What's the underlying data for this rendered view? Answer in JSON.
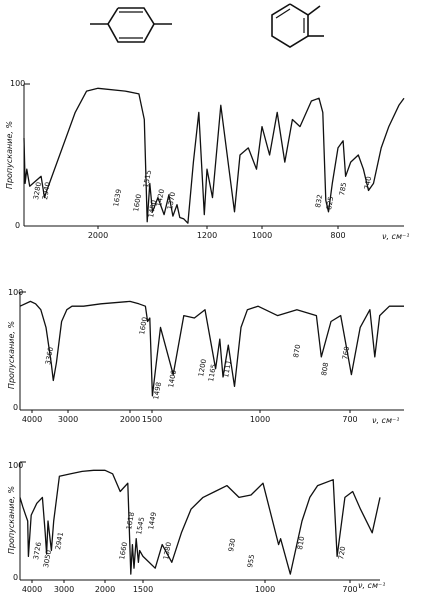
{
  "figure": {
    "structures": [
      {
        "name": "1,4-dimethyl-1,4-cyclohexadiene"
      },
      {
        "name": "1,2-dimethyl-1,3-cyclohexadiene"
      }
    ]
  },
  "chart_data": [
    {
      "type": "line",
      "title": "",
      "ylabel": "Пропускание, %",
      "xlabel": "ν, см⁻¹",
      "ylim": [
        0,
        100
      ],
      "y_ticks": [
        "100",
        "0"
      ],
      "x_ticks": [
        "2000",
        "1200",
        "1000",
        "800"
      ],
      "peak_labels": [
        "3280",
        "2940",
        "1639",
        "1600",
        "1515",
        "1450",
        "1420",
        "1370",
        "832",
        "825",
        "785",
        "740"
      ],
      "series": [
        {
          "x": [
            3300,
            3280,
            3250,
            3200,
            3000,
            2940,
            2900,
            2400,
            2200,
            2000,
            1800,
            1700,
            1660,
            1639,
            1620,
            1600,
            1560,
            1515,
            1480,
            1450,
            1420,
            1400,
            1370,
            1340,
            1300,
            1260,
            1220,
            1200,
            1180,
            1150,
            1120,
            1100,
            1080,
            1050,
            1020,
            1000,
            980,
            960,
            940,
            920,
            900,
            870,
            850,
            840,
            832,
            825,
            815,
            800,
            790,
            785,
            775,
            760,
            750,
            740,
            730,
            715,
            700,
            680,
            670
          ],
          "y": [
            62,
            30,
            40,
            28,
            35,
            20,
            25,
            80,
            95,
            97,
            95,
            93,
            75,
            3,
            30,
            10,
            20,
            8,
            22,
            7,
            15,
            6,
            5,
            2,
            45,
            80,
            8,
            40,
            20,
            85,
            40,
            10,
            50,
            55,
            40,
            70,
            50,
            80,
            45,
            75,
            70,
            88,
            90,
            80,
            18,
            10,
            30,
            55,
            60,
            35,
            45,
            50,
            40,
            25,
            30,
            55,
            70,
            85,
            90
          ]
        }
      ]
    },
    {
      "type": "line",
      "title": "",
      "ylabel": "Пропускание, %",
      "xlabel": "ν, см⁻¹",
      "ylim": [
        0,
        100
      ],
      "y_ticks": [
        "100",
        "0"
      ],
      "x_ticks": [
        "4000",
        "3000",
        "2000",
        "1500",
        "1000",
        "700"
      ],
      "peak_labels": [
        "3360",
        "1600",
        "1498",
        "1400",
        "1200",
        "1165",
        "1111",
        "870",
        "808",
        "760"
      ],
      "series": [
        {
          "x": [
            4000,
            3800,
            3700,
            3600,
            3500,
            3400,
            3360,
            3300,
            3200,
            3100,
            3000,
            2800,
            2500,
            2000,
            1800,
            1650,
            1600,
            1550,
            1498,
            1460,
            1400,
            1350,
            1300,
            1250,
            1200,
            1180,
            1165,
            1140,
            1111,
            1080,
            1050,
            1000,
            960,
            920,
            880,
            870,
            850,
            830,
            808,
            790,
            770,
            760,
            750,
            730,
            700
          ],
          "y": [
            88,
            92,
            90,
            85,
            70,
            40,
            25,
            40,
            75,
            85,
            88,
            88,
            90,
            92,
            90,
            88,
            75,
            78,
            12,
            70,
            30,
            80,
            78,
            85,
            35,
            60,
            28,
            55,
            20,
            70,
            85,
            88,
            80,
            85,
            80,
            45,
            75,
            80,
            30,
            70,
            85,
            45,
            80,
            88,
            88
          ]
        }
      ]
    },
    {
      "type": "line",
      "title": "",
      "ylabel": "Пропускание, %",
      "xlabel": "ν, см⁻¹",
      "ylim": [
        0,
        100
      ],
      "y_ticks": [
        "100",
        "0"
      ],
      "x_ticks": [
        "4000",
        "3000",
        "2000",
        "1500",
        "1000",
        "700"
      ],
      "peak_labels": [
        "3726",
        "3050",
        "2941",
        "1660",
        "1618",
        "1545",
        "1449",
        "1380",
        "930",
        "955",
        "810",
        "720"
      ],
      "series": [
        {
          "x": [
            4000,
            3900,
            3800,
            3726,
            3700,
            3600,
            3400,
            3200,
            3100,
            3050,
            3000,
            2941,
            2900,
            2800,
            2600,
            2400,
            2200,
            2000,
            1900,
            1800,
            1700,
            1660,
            1640,
            1618,
            1590,
            1560,
            1545,
            1500,
            1449,
            1420,
            1380,
            1340,
            1300,
            1250,
            1200,
            1150,
            1100,
            1050,
            1000,
            960,
            955,
            930,
            900,
            880,
            860,
            820,
            810,
            790,
            770,
            750,
            720,
            700
          ],
          "y": [
            70,
            62,
            55,
            50,
            20,
            55,
            65,
            70,
            40,
            22,
            50,
            25,
            50,
            88,
            90,
            92,
            93,
            93,
            90,
            75,
            82,
            5,
            30,
            10,
            35,
            15,
            25,
            20,
            10,
            30,
            15,
            40,
            60,
            70,
            75,
            80,
            70,
            72,
            82,
            30,
            35,
            5,
            50,
            70,
            80,
            85,
            20,
            70,
            75,
            60,
            40,
            70
          ]
        }
      ]
    }
  ]
}
